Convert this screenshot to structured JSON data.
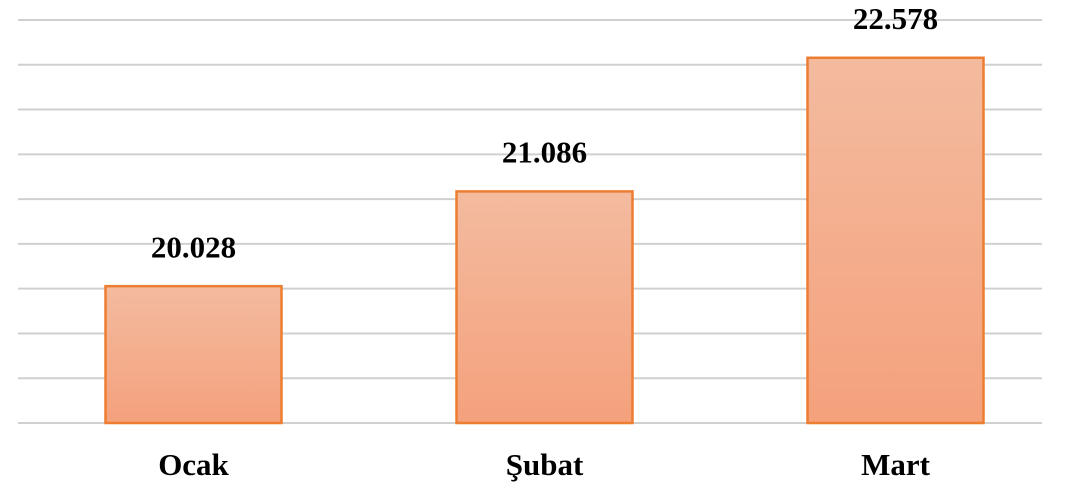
{
  "chart_data": {
    "type": "bar",
    "categories": [
      "Ocak",
      "Şubat",
      "Mart"
    ],
    "values": [
      20028,
      21086,
      22578
    ],
    "value_labels": [
      "20.028",
      "21.086",
      "22.578"
    ],
    "color": "#f4a883",
    "ylim": [
      18500,
      23000
    ],
    "yticks": [
      18500,
      19000,
      19500,
      20000,
      20500,
      21000,
      21500,
      22000,
      22500,
      23000
    ],
    "grid": true
  }
}
